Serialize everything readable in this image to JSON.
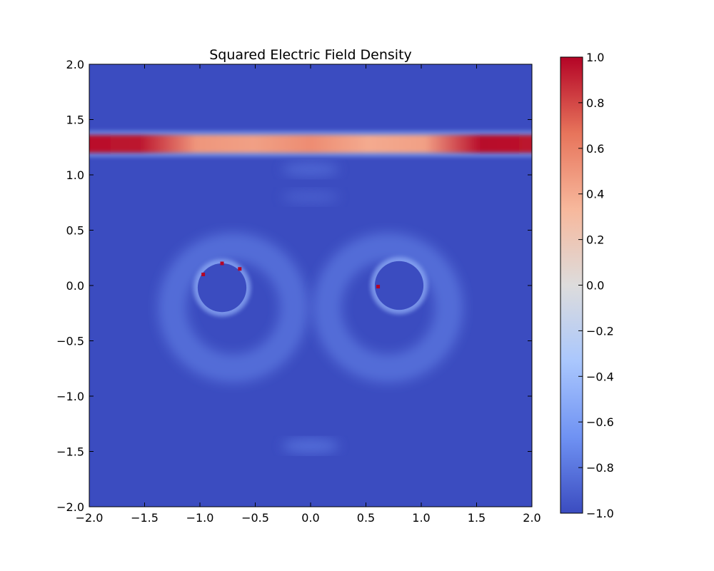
{
  "chart_data": {
    "type": "heatmap",
    "title": "Squared Electric Field Density",
    "xlabel": "",
    "ylabel": "",
    "xlim": [
      -2.0,
      2.0
    ],
    "ylim": [
      -2.0,
      2.0
    ],
    "x_ticks": [
      "−2.0",
      "−1.5",
      "−1.0",
      "−0.5",
      "0.0",
      "0.5",
      "1.0",
      "1.5",
      "2.0"
    ],
    "y_ticks": [
      "−2.0",
      "−1.5",
      "−1.0",
      "−0.5",
      "0.0",
      "0.5",
      "1.0",
      "1.5",
      "2.0"
    ],
    "colorbar": {
      "range": [
        -1.0,
        1.0
      ],
      "ticks": [
        "−1.0",
        "−0.8",
        "−0.6",
        "−0.4",
        "−0.2",
        "0.0",
        "0.2",
        "0.4",
        "0.6",
        "0.8",
        "1.0"
      ],
      "colormap": "coolwarm",
      "colors": [
        "#3b4cc0",
        "#6f92f3",
        "#aac7fd",
        "#dddcdc",
        "#f7b89c",
        "#e7745b",
        "#b40426"
      ]
    },
    "grid": false,
    "features": {
      "band": {
        "y_center": 1.28,
        "halfwidth": 0.08,
        "peak_values": [
          [
            -2.0,
            0.97
          ],
          [
            -1.5,
            0.95
          ],
          [
            -1.0,
            0.5
          ],
          [
            -0.5,
            0.45
          ],
          [
            0.0,
            0.55
          ],
          [
            0.5,
            0.4
          ],
          [
            1.0,
            0.45
          ],
          [
            1.5,
            0.98
          ],
          [
            2.0,
            0.95
          ]
        ]
      },
      "conductors": [
        {
          "cx": -0.8,
          "cy": -0.02,
          "r": 0.22,
          "surface_hotspots": [
            [
              -0.8,
              0.2
            ],
            [
              -0.97,
              0.1
            ],
            [
              -0.64,
              0.15
            ]
          ]
        },
        {
          "cx": 0.8,
          "cy": 0.0,
          "r": 0.22,
          "surface_hotspots": [
            [
              0.61,
              -0.01
            ]
          ]
        }
      ],
      "halo_rings": [
        {
          "cx": -0.7,
          "cy": -0.2,
          "r": 0.55,
          "value": -0.72
        },
        {
          "cx": 0.7,
          "cy": -0.2,
          "r": 0.55,
          "value": -0.72
        }
      ],
      "faint_blobs": [
        {
          "x": 0.0,
          "y": 1.05,
          "value": -0.85
        },
        {
          "x": 0.0,
          "y": 0.8,
          "value": -0.9
        },
        {
          "x": 0.0,
          "y": -1.45,
          "value": -0.8
        }
      ],
      "background_value": -0.93
    }
  }
}
